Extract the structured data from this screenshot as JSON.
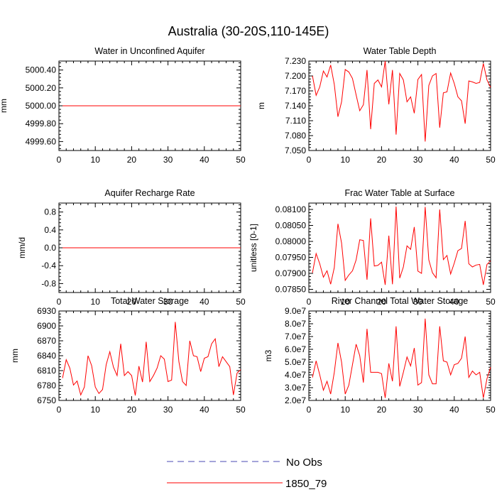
{
  "title": "Australia (30-20S,110-145E)",
  "legend": [
    {
      "label": "No Obs",
      "color": "#4a4ab4",
      "dash": true
    },
    {
      "label": "1850_79",
      "color": "#ff0000",
      "dash": false
    }
  ],
  "chart_data": [
    {
      "type": "line",
      "title": "Water in Unconfined Aquifer",
      "xlabel": "",
      "ylabel": "mm",
      "xlim": [
        0,
        50
      ],
      "ylim": [
        4999.5,
        5000.5
      ],
      "xticks": [
        0,
        10,
        20,
        30,
        40,
        50
      ],
      "yticks": [
        4999.6,
        4999.8,
        5000.0,
        5000.2,
        5000.4
      ],
      "ytick_labels": [
        "4999.60",
        "4999.80",
        "5000.00",
        "5000.20",
        "5000.40"
      ],
      "series": [
        {
          "name": "1850_79",
          "x_start": 1,
          "values": [
            5000,
            5000,
            5000,
            5000,
            5000,
            5000,
            5000,
            5000,
            5000,
            5000,
            5000,
            5000,
            5000,
            5000,
            5000,
            5000,
            5000,
            5000,
            5000,
            5000,
            5000,
            5000,
            5000,
            5000,
            5000,
            5000,
            5000,
            5000,
            5000,
            5000,
            5000,
            5000,
            5000,
            5000,
            5000,
            5000,
            5000,
            5000,
            5000,
            5000,
            5000,
            5000,
            5000,
            5000,
            5000,
            5000,
            5000,
            5000,
            5000,
            5000
          ]
        }
      ]
    },
    {
      "type": "line",
      "title": "Water Table Depth",
      "xlabel": "",
      "ylabel": "m",
      "xlim": [
        0,
        50
      ],
      "ylim": [
        7.05,
        7.23
      ],
      "xticks": [
        0,
        10,
        20,
        30,
        40,
        50
      ],
      "yticks": [
        7.05,
        7.08,
        7.11,
        7.14,
        7.17,
        7.2,
        7.23
      ],
      "ytick_labels": [
        "7.050",
        "7.080",
        "7.110",
        "7.140",
        "7.170",
        "7.200",
        "7.230"
      ],
      "series": [
        {
          "name": "1850_79",
          "x_start": 1,
          "values": [
            7.2,
            7.161,
            7.178,
            7.21,
            7.198,
            7.222,
            7.183,
            7.118,
            7.148,
            7.213,
            7.208,
            7.195,
            7.162,
            7.13,
            7.142,
            7.212,
            7.093,
            7.185,
            7.192,
            7.178,
            7.23,
            7.143,
            7.212,
            7.082,
            7.205,
            7.192,
            7.148,
            7.158,
            7.125,
            7.193,
            7.203,
            7.068,
            7.181,
            7.2,
            7.205,
            7.096,
            7.166,
            7.168,
            7.206,
            7.185,
            7.158,
            7.15,
            7.104,
            7.19,
            7.188,
            7.185,
            7.187,
            7.225,
            7.192,
            7.177
          ]
        }
      ]
    },
    {
      "type": "line",
      "title": "Aquifer Recharge Rate",
      "xlabel": "",
      "ylabel": "mm/d",
      "xlim": [
        0,
        50
      ],
      "ylim": [
        -1.0,
        1.0
      ],
      "xticks": [
        0,
        10,
        20,
        30,
        40,
        50
      ],
      "yticks": [
        -0.8,
        -0.4,
        0.0,
        0.4,
        0.8
      ],
      "ytick_labels": [
        "-0.8",
        "-0.4",
        "0.0",
        "0.4",
        "0.8"
      ],
      "series": [
        {
          "name": "1850_79",
          "x_start": 1,
          "values": [
            0,
            0,
            0,
            0,
            0,
            0,
            0,
            0,
            0,
            0,
            0,
            0,
            0,
            0,
            0,
            0,
            0,
            0,
            0,
            0,
            0,
            0,
            0,
            0,
            0,
            0,
            0,
            0,
            0,
            0,
            0,
            0,
            0,
            0,
            0,
            0,
            0,
            0,
            0,
            0,
            0,
            0,
            0,
            0,
            0,
            0,
            0,
            0,
            0,
            0
          ]
        }
      ]
    },
    {
      "type": "line",
      "title": "Frac Water Table at Surface",
      "xlabel": "",
      "ylabel": "unitless [0-1]",
      "xlim": [
        0,
        50
      ],
      "ylim": [
        0.0784,
        0.0812
      ],
      "xticks": [
        0,
        10,
        20,
        30,
        40,
        50
      ],
      "yticks": [
        0.0785,
        0.079,
        0.0795,
        0.08,
        0.0805,
        0.081
      ],
      "ytick_labels": [
        "0.07850",
        "0.07900",
        "0.07950",
        "0.08000",
        "0.08050",
        "0.08100"
      ],
      "series": [
        {
          "name": "1850_79",
          "x_start": 1,
          "values": [
            0.07902,
            0.07962,
            0.0793,
            0.07888,
            0.07908,
            0.07866,
            0.07918,
            0.08055,
            0.07995,
            0.07878,
            0.07895,
            0.07908,
            0.07942,
            0.08005,
            0.08003,
            0.0788,
            0.08072,
            0.07923,
            0.07925,
            0.07935,
            0.07864,
            0.08018,
            0.07866,
            0.08109,
            0.07885,
            0.0792,
            0.07986,
            0.07975,
            0.08045,
            0.07907,
            0.079,
            0.08108,
            0.07942,
            0.07902,
            0.07886,
            0.081,
            0.07943,
            0.07956,
            0.07898,
            0.07932,
            0.07971,
            0.07978,
            0.08064,
            0.0793,
            0.0792,
            0.07926,
            0.07928,
            0.07864,
            0.07928,
            0.07939
          ]
        }
      ]
    },
    {
      "type": "line",
      "title": "Total Water Storage",
      "xlabel": "",
      "ylabel": "mm",
      "xlim": [
        0,
        50
      ],
      "ylim": [
        6750,
        6930
      ],
      "xticks": [
        0,
        10,
        20,
        30,
        40,
        50
      ],
      "yticks": [
        6750,
        6780,
        6810,
        6840,
        6870,
        6900,
        6930
      ],
      "ytick_labels": [
        "6750",
        "6780",
        "6810",
        "6840",
        "6870",
        "6900",
        "6930"
      ],
      "series": [
        {
          "name": "1850_79",
          "x_start": 1,
          "values": [
            6795,
            6832,
            6815,
            6781,
            6789,
            6761,
            6777,
            6840,
            6820,
            6777,
            6764,
            6772,
            6822,
            6848,
            6817,
            6800,
            6864,
            6800,
            6808,
            6800,
            6760,
            6819,
            6787,
            6868,
            6788,
            6800,
            6815,
            6840,
            6833,
            6788,
            6791,
            6908,
            6828,
            6788,
            6780,
            6870,
            6840,
            6838,
            6808,
            6835,
            6838,
            6864,
            6874,
            6818,
            6838,
            6828,
            6818,
            6761,
            6805,
            6812
          ]
        }
      ]
    },
    {
      "type": "line",
      "title": "River Channel Total Water Storage",
      "xlabel": "",
      "ylabel": "m3",
      "xlim": [
        0,
        50
      ],
      "ylim": [
        20000000.0,
        90000000.0
      ],
      "xticks": [
        0,
        10,
        20,
        30,
        40,
        50
      ],
      "yticks": [
        20000000.0,
        30000000.0,
        40000000.0,
        50000000.0,
        60000000.0,
        70000000.0,
        80000000.0,
        90000000.0
      ],
      "ytick_labels": [
        "2.0e7",
        "3.0e7",
        "4.0e7",
        "5.0e7",
        "6.0e7",
        "7.0e7",
        "8.0e7",
        "9.0e7"
      ],
      "series": [
        {
          "name": "1850_79",
          "x_start": 1,
          "values": [
            38000000.0,
            51000000.0,
            40000000.0,
            28000000.0,
            35000000.0,
            25000000.0,
            42000000.0,
            65000000.0,
            50000000.0,
            25000000.0,
            32000000.0,
            48000000.0,
            64000000.0,
            55000000.0,
            34000000.0,
            76000000.0,
            42000000.0,
            42000000.0,
            42000000.0,
            41000000.0,
            22000000.0,
            49000000.0,
            35000000.0,
            78000000.0,
            31000000.0,
            42000000.0,
            54000000.0,
            47000000.0,
            61000000.0,
            32000000.0,
            34000000.0,
            84000000.0,
            40000000.0,
            33000000.0,
            33000000.0,
            78000000.0,
            51000000.0,
            50000000.0,
            40000000.0,
            48000000.0,
            49000000.0,
            53000000.0,
            70000000.0,
            38000000.0,
            43000000.0,
            40000000.0,
            42000000.0,
            22000000.0,
            37000000.0,
            46000000.0
          ]
        }
      ]
    }
  ]
}
